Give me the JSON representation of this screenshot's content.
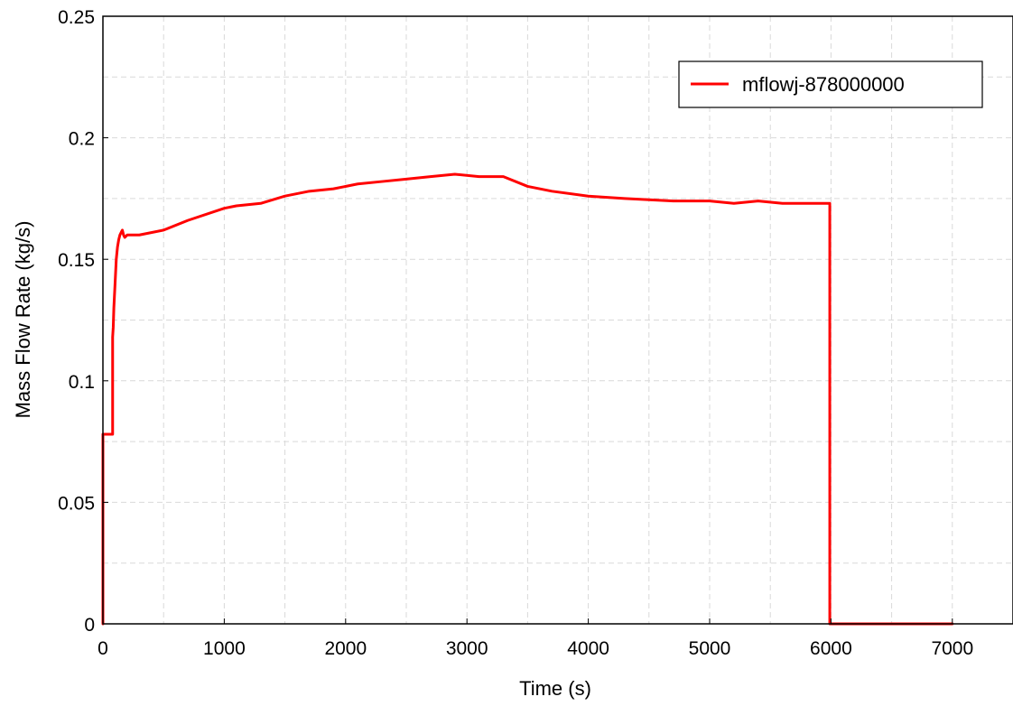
{
  "chart_data": {
    "type": "line",
    "title": "",
    "xlabel": "Time (s)",
    "ylabel": "Mass Flow Rate (kg/s)",
    "xlim": [
      0,
      7500
    ],
    "ylim": [
      0,
      0.25
    ],
    "xticks": [
      0,
      1000,
      2000,
      3000,
      4000,
      5000,
      6000,
      7000
    ],
    "xtick_labels": [
      "0",
      "1000",
      "2000",
      "3000",
      "4000",
      "5000",
      "6000",
      "7000"
    ],
    "yticks": [
      0,
      0.05,
      0.1,
      0.15,
      0.2,
      0.25
    ],
    "ytick_labels": [
      "0",
      "0.05",
      "0.1",
      "0.15",
      "0.2",
      "0.25"
    ],
    "grid": true,
    "legend_position": "top-right",
    "series": [
      {
        "name": "mflowj-878000000",
        "color": "#ff0000",
        "x": [
          0,
          0,
          80,
          80,
          85,
          90,
          100,
          110,
          120,
          130,
          140,
          150,
          160,
          170,
          180,
          200,
          300,
          500,
          700,
          1000,
          1100,
          1300,
          1500,
          1700,
          1900,
          2100,
          2300,
          2500,
          2700,
          2900,
          3100,
          3300,
          3500,
          3700,
          4000,
          4300,
          4700,
          5000,
          5200,
          5400,
          5600,
          5800,
          5990,
          5990,
          6500,
          7000
        ],
        "y": [
          0,
          0.078,
          0.078,
          0.118,
          0.122,
          0.13,
          0.14,
          0.15,
          0.155,
          0.158,
          0.16,
          0.161,
          0.162,
          0.16,
          0.159,
          0.16,
          0.16,
          0.162,
          0.166,
          0.171,
          0.172,
          0.173,
          0.176,
          0.178,
          0.179,
          0.181,
          0.182,
          0.183,
          0.184,
          0.185,
          0.184,
          0.184,
          0.18,
          0.178,
          0.176,
          0.175,
          0.174,
          0.174,
          0.173,
          0.174,
          0.173,
          0.173,
          0.173,
          0,
          0,
          0
        ]
      }
    ]
  }
}
